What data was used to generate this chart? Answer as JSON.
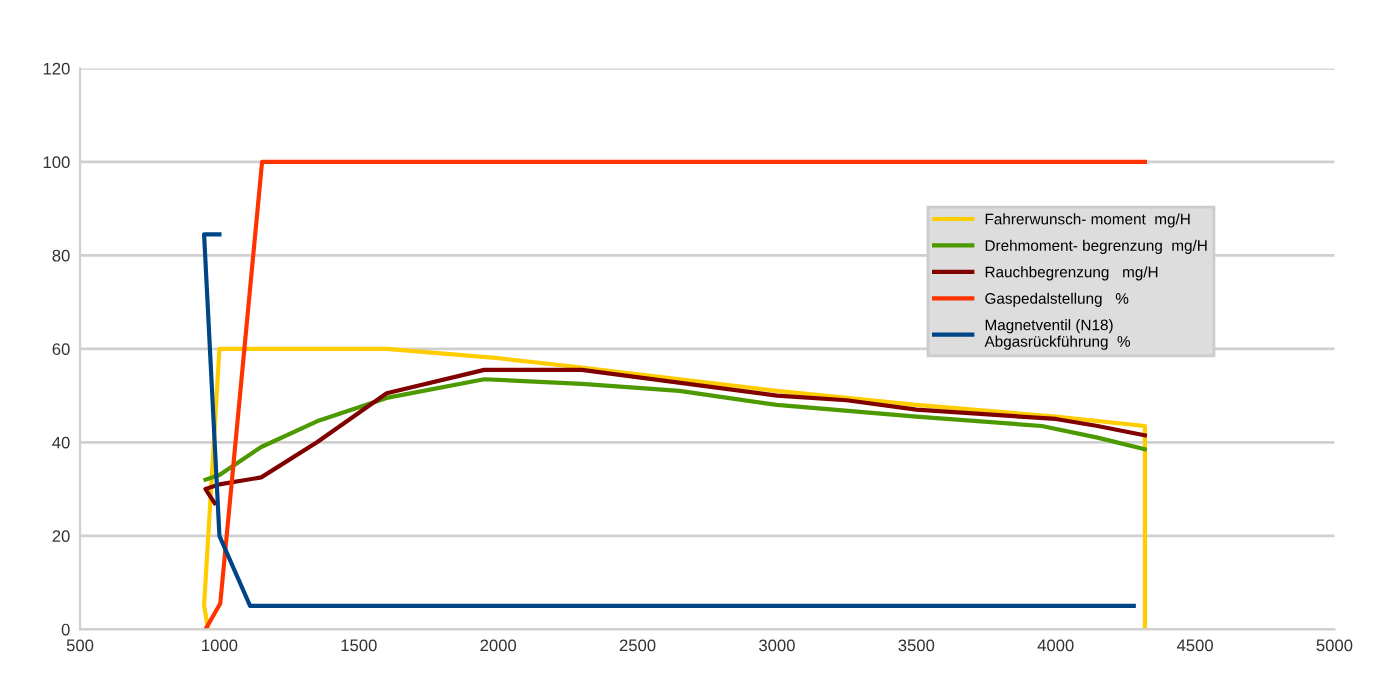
{
  "chart_data": {
    "type": "line",
    "xlim": [
      500,
      5000
    ],
    "xticks": [
      500,
      1000,
      1500,
      2000,
      2500,
      3000,
      3500,
      4000,
      4500,
      5000
    ],
    "ylim": [
      0,
      120
    ],
    "yticks": [
      0,
      20,
      40,
      60,
      80,
      100,
      120
    ],
    "grid": "y",
    "legend": "right",
    "marker": "none",
    "line_style": "solid",
    "series": [
      {
        "name": "Fahrerwunsch- moment  mg/H",
        "color": "#ffcc00",
        "x": [
          960,
          945,
          1000,
          1600,
          2000,
          2300,
          3000,
          3500,
          4000,
          4320,
          4320
        ],
        "values": [
          0,
          5,
          60,
          60,
          58,
          56,
          51,
          48,
          45.5,
          43.5,
          0
        ]
      },
      {
        "name": "Drehmoment- begrenzung  mg/H",
        "color": "#4c9900",
        "x": [
          950,
          1000,
          1150,
          1350,
          1600,
          1950,
          2300,
          2650,
          3000,
          3500,
          3950,
          4150,
          4320
        ],
        "values": [
          32,
          33,
          39,
          44.5,
          49.5,
          53.5,
          52.5,
          51,
          48,
          45.5,
          43.5,
          41,
          38.5
        ]
      },
      {
        "name": "Rauchbegrenzung   mg/H",
        "color": "#800000",
        "x": [
          983,
          950,
          1000,
          1150,
          1350,
          1600,
          1950,
          2300,
          3000,
          3250,
          3500,
          4000,
          4150,
          4320
        ],
        "values": [
          27,
          30,
          31,
          32.5,
          40,
          50.5,
          55.5,
          55.5,
          50,
          49,
          47,
          45,
          43.5,
          41.5
        ]
      },
      {
        "name": "Gaspedalstellung   %",
        "color": "#ff3300",
        "x": [
          950,
          1003,
          1153,
          4320
        ],
        "values": [
          0,
          5.5,
          100,
          100
        ]
      },
      {
        "name": "Magnetventil (N18)\nAbgasrückführung  %",
        "color": "#004586",
        "x": [
          1000,
          945,
          1000,
          1110,
          4280
        ],
        "values": [
          84.5,
          84.5,
          20,
          5,
          5
        ]
      }
    ]
  }
}
